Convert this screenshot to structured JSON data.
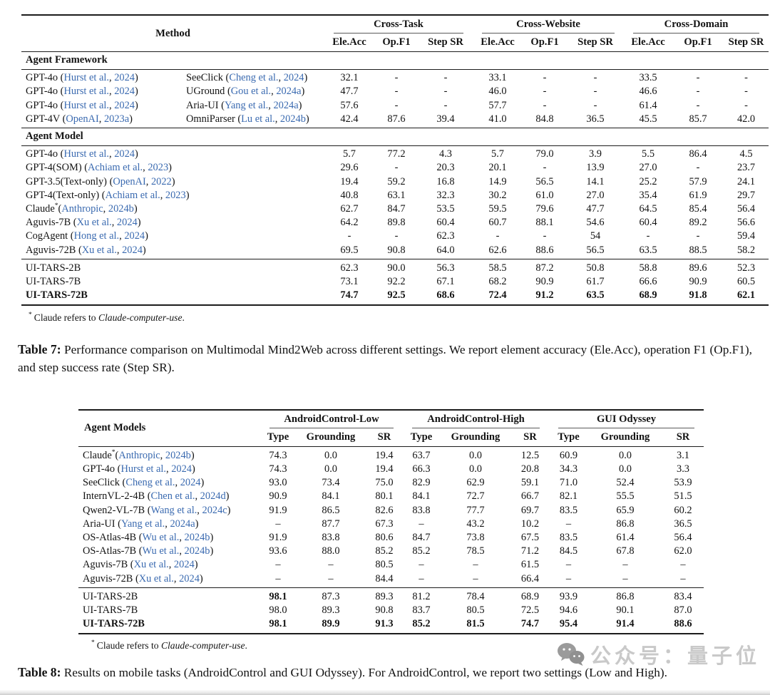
{
  "colors": {
    "citation_link": "#3a6ab0",
    "watermark_gray": "#c9c9c9",
    "rule_black": "#1c1c1c"
  },
  "table7": {
    "header": {
      "method_label": "Method",
      "groups": [
        {
          "label": "Cross-Task"
        },
        {
          "label": "Cross-Website"
        },
        {
          "label": "Cross-Domain"
        }
      ],
      "subcolumns": [
        "Ele.Acc",
        "Op.F1",
        "Step SR"
      ]
    },
    "sections": [
      {
        "title": "Agent Framework",
        "rows": [
          {
            "model": {
              "name": "GPT-4o",
              "author": "Hurst et al.",
              "year": "2024"
            },
            "method2": {
              "name": "SeeClick",
              "author": "Cheng et al.",
              "year": "2024"
            },
            "values": [
              "32.1",
              "-",
              "-",
              "33.1",
              "-",
              "-",
              "33.5",
              "-",
              "-"
            ]
          },
          {
            "model": {
              "name": "GPT-4o",
              "author": "Hurst et al.",
              "year": "2024"
            },
            "method2": {
              "name": "UGround",
              "author": "Gou et al.",
              "year": "2024a"
            },
            "values": [
              "47.7",
              "-",
              "-",
              "46.0",
              "-",
              "-",
              "46.6",
              "-",
              "-"
            ]
          },
          {
            "model": {
              "name": "GPT-4o",
              "author": "Hurst et al.",
              "year": "2024"
            },
            "method2": {
              "name": "Aria-UI",
              "author": "Yang et al.",
              "year": "2024a"
            },
            "values": [
              "57.6",
              "-",
              "-",
              "57.7",
              "-",
              "-",
              "61.4",
              "-",
              "-"
            ]
          },
          {
            "model": {
              "name": "GPT-4V",
              "author": "OpenAI",
              "year": "2023a"
            },
            "method2": {
              "name": "OmniParser",
              "author": "Lu et al.",
              "year": "2024b"
            },
            "values": [
              "42.4",
              "87.6",
              "39.4",
              "41.0",
              "84.8",
              "36.5",
              "45.5",
              "85.7",
              "42.0"
            ]
          }
        ]
      },
      {
        "title": "Agent Model",
        "rows": [
          {
            "model": {
              "name": "GPT-4o",
              "author": "Hurst et al.",
              "year": "2024"
            },
            "values": [
              "5.7",
              "77.2",
              "4.3",
              "5.7",
              "79.0",
              "3.9",
              "5.5",
              "86.4",
              "4.5"
            ]
          },
          {
            "model": {
              "name": "GPT-4(SOM)",
              "author": "Achiam et al.",
              "year": "2023"
            },
            "values": [
              "29.6",
              "-",
              "20.3",
              "20.1",
              "-",
              "13.9",
              "27.0",
              "-",
              "23.7"
            ]
          },
          {
            "model": {
              "name": "GPT-3.5(Text-only)",
              "author": "OpenAI",
              "year": "2022"
            },
            "values": [
              "19.4",
              "59.2",
              "16.8",
              "14.9",
              "56.5",
              "14.1",
              "25.2",
              "57.9",
              "24.1"
            ]
          },
          {
            "model": {
              "name": "GPT-4(Text-only)",
              "author": "Achiam et al.",
              "year": "2023"
            },
            "values": [
              "40.8",
              "63.1",
              "32.3",
              "30.2",
              "61.0",
              "27.0",
              "35.4",
              "61.9",
              "29.7"
            ]
          },
          {
            "model": {
              "name": "Claude",
              "sup": "*",
              "tight": true,
              "author": "Anthropic",
              "year": "2024b"
            },
            "values": [
              "62.7",
              "84.7",
              "53.5",
              "59.5",
              "79.6",
              "47.7",
              "64.5",
              "85.4",
              "56.4"
            ]
          },
          {
            "model": {
              "name": "Aguvis-7B",
              "author": "Xu et al.",
              "year": "2024"
            },
            "values": [
              "64.2",
              "89.8",
              "60.4",
              "60.7",
              "88.1",
              "54.6",
              "60.4",
              "89.2",
              "56.6"
            ]
          },
          {
            "model": {
              "name": "CogAgent",
              "author": "Hong et al.",
              "year": "2024"
            },
            "values": [
              "-",
              "-",
              "62.3",
              "-",
              "-",
              "54",
              "-",
              "-",
              "59.4"
            ]
          },
          {
            "model": {
              "name": "Aguvis-72B",
              "author": "Xu et al.",
              "year": "2024"
            },
            "values": [
              "69.5",
              "90.8",
              "64.0",
              "62.6",
              "88.6",
              "56.5",
              "63.5",
              "88.5",
              "58.2"
            ]
          }
        ]
      },
      {
        "title": null,
        "rule_top": true,
        "rows": [
          {
            "model": {
              "name": "UI-TARS-2B"
            },
            "values": [
              "62.3",
              "90.0",
              "56.3",
              "58.5",
              "87.2",
              "50.8",
              "58.8",
              "89.6",
              "52.3"
            ]
          },
          {
            "model": {
              "name": "UI-TARS-7B"
            },
            "values": [
              "73.1",
              "92.2",
              "67.1",
              "68.2",
              "90.9",
              "61.7",
              "66.6",
              "90.9",
              "60.5"
            ]
          },
          {
            "model": {
              "name": "UI-TARS-72B"
            },
            "bold": true,
            "values": [
              "74.7",
              "92.5",
              "68.6",
              "72.4",
              "91.2",
              "63.5",
              "68.9",
              "91.8",
              "62.1"
            ]
          }
        ]
      }
    ],
    "footnote": {
      "marker": "*",
      "text": "Claude refers to ",
      "italic": "Claude-computer-use",
      "period": "."
    }
  },
  "caption7": {
    "label": "Table 7:",
    "text": "Performance comparison on Multimodal Mind2Web across different settings. We report element accuracy (Ele.Acc), operation F1 (Op.F1), and step success rate (Step SR)."
  },
  "table8": {
    "header": {
      "model_label": "Agent Models",
      "groups": [
        {
          "label": "AndroidControl-Low"
        },
        {
          "label": "AndroidControl-High"
        },
        {
          "label": "GUI Odyssey"
        }
      ],
      "subcolumns": [
        "Type",
        "Grounding",
        "SR"
      ]
    },
    "sections": [
      {
        "title": null,
        "rows": [
          {
            "model": {
              "name": "Claude",
              "sup": "*",
              "tight": true,
              "author": "Anthropic",
              "year": "2024b"
            },
            "values": [
              "74.3",
              "0.0",
              "19.4",
              "63.7",
              "0.0",
              "12.5",
              "60.9",
              "0.0",
              "3.1"
            ]
          },
          {
            "model": {
              "name": "GPT-4o",
              "author": "Hurst et al.",
              "year": "2024"
            },
            "values": [
              "74.3",
              "0.0",
              "19.4",
              "66.3",
              "0.0",
              "20.8",
              "34.3",
              "0.0",
              "3.3"
            ]
          },
          {
            "model": {
              "name": "SeeClick",
              "author": "Cheng et al.",
              "year": "2024"
            },
            "values": [
              "93.0",
              "73.4",
              "75.0",
              "82.9",
              "62.9",
              "59.1",
              "71.0",
              "52.4",
              "53.9"
            ]
          },
          {
            "model": {
              "name": "InternVL-2-4B",
              "author": "Chen et al.",
              "year": "2024d"
            },
            "values": [
              "90.9",
              "84.1",
              "80.1",
              "84.1",
              "72.7",
              "66.7",
              "82.1",
              "55.5",
              "51.5"
            ]
          },
          {
            "model": {
              "name": "Qwen2-VL-7B",
              "author": "Wang et al.",
              "year": "2024c"
            },
            "values": [
              "91.9",
              "86.5",
              "82.6",
              "83.8",
              "77.7",
              "69.7",
              "83.5",
              "65.9",
              "60.2"
            ]
          },
          {
            "model": {
              "name": "Aria-UI",
              "author": "Yang et al.",
              "year": "2024a"
            },
            "values": [
              "–",
              "87.7",
              "67.3",
              "–",
              "43.2",
              "10.2",
              "–",
              "86.8",
              "36.5"
            ]
          },
          {
            "model": {
              "name": "OS-Atlas-4B",
              "author": "Wu et al.",
              "year": "2024b"
            },
            "values": [
              "91.9",
              "83.8",
              "80.6",
              "84.7",
              "73.8",
              "67.5",
              "83.5",
              "61.4",
              "56.4"
            ]
          },
          {
            "model": {
              "name": "OS-Atlas-7B",
              "author": "Wu et al.",
              "year": "2024b"
            },
            "values": [
              "93.6",
              "88.0",
              "85.2",
              "85.2",
              "78.5",
              "71.2",
              "84.5",
              "67.8",
              "62.0"
            ]
          },
          {
            "model": {
              "name": "Aguvis-7B",
              "author": "Xu et al.",
              "year": "2024"
            },
            "values": [
              "–",
              "–",
              "80.5",
              "–",
              "–",
              "61.5",
              "–",
              "–",
              "–"
            ]
          },
          {
            "model": {
              "name": "Aguvis-72B",
              "author": "Xu et al.",
              "year": "2024"
            },
            "values": [
              "–",
              "–",
              "84.4",
              "–",
              "–",
              "66.4",
              "–",
              "–",
              "–"
            ]
          }
        ]
      },
      {
        "title": null,
        "rule_top": true,
        "rows": [
          {
            "model": {
              "name": "UI-TARS-2B"
            },
            "bold_cols": [
              0
            ],
            "values": [
              "98.1",
              "87.3",
              "89.3",
              "81.2",
              "78.4",
              "68.9",
              "93.9",
              "86.8",
              "83.4"
            ]
          },
          {
            "model": {
              "name": "UI-TARS-7B"
            },
            "values": [
              "98.0",
              "89.3",
              "90.8",
              "83.7",
              "80.5",
              "72.5",
              "94.6",
              "90.1",
              "87.0"
            ]
          },
          {
            "model": {
              "name": "UI-TARS-72B"
            },
            "bold": true,
            "values": [
              "98.1",
              "89.9",
              "91.3",
              "85.2",
              "81.5",
              "74.7",
              "95.4",
              "91.4",
              "88.6"
            ]
          }
        ]
      }
    ],
    "footnote": {
      "marker": "*",
      "text": "Claude refers to ",
      "italic": "Claude-computer-use",
      "period": "."
    }
  },
  "caption8": {
    "label": "Table 8:",
    "text": "Results on mobile tasks (AndroidControl and GUI Odyssey). For AndroidControl, we report two settings (Low and High)."
  },
  "watermark": {
    "icon": "wechat-icon",
    "text": "公众号：量子位"
  }
}
